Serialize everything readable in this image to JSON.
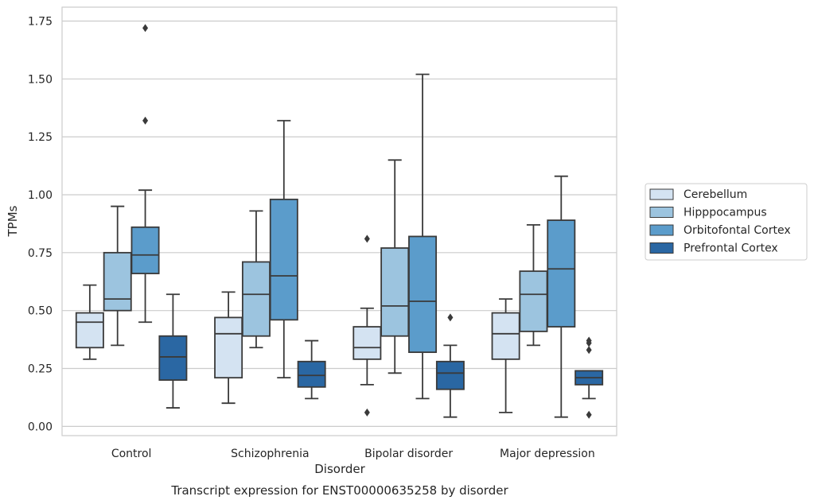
{
  "chart_data": {
    "type": "box",
    "title": "",
    "caption": "Transcript expression for ENST00000635258 by disorder",
    "xlabel": "Disorder",
    "ylabel": "TPMs",
    "ylim": [
      -0.04,
      1.81
    ],
    "yticks": [
      "0.00",
      "0.25",
      "0.50",
      "0.75",
      "1.00",
      "1.25",
      "1.50",
      "1.75"
    ],
    "grid": "horizontal",
    "legend_position": "right",
    "categories": [
      "Control",
      "Schizophrenia",
      "Bipolar disorder",
      "Major depression"
    ],
    "series": [
      {
        "name": "Cerebellum",
        "color": "#d4e3f2",
        "boxes": [
          {
            "whisker_low": 0.29,
            "q1": 0.34,
            "median": 0.45,
            "q3": 0.49,
            "whisker_high": 0.61,
            "outliers": []
          },
          {
            "whisker_low": 0.1,
            "q1": 0.21,
            "median": 0.4,
            "q3": 0.47,
            "whisker_high": 0.58,
            "outliers": []
          },
          {
            "whisker_low": 0.18,
            "q1": 0.29,
            "median": 0.34,
            "q3": 0.43,
            "whisker_high": 0.51,
            "outliers": [
              0.81,
              0.06
            ]
          },
          {
            "whisker_low": 0.06,
            "q1": 0.29,
            "median": 0.4,
            "q3": 0.49,
            "whisker_high": 0.55,
            "outliers": []
          }
        ]
      },
      {
        "name": "Hipppocampus",
        "color": "#9cc4df",
        "boxes": [
          {
            "whisker_low": 0.35,
            "q1": 0.5,
            "median": 0.55,
            "q3": 0.75,
            "whisker_high": 0.95,
            "outliers": []
          },
          {
            "whisker_low": 0.34,
            "q1": 0.39,
            "median": 0.57,
            "q3": 0.71,
            "whisker_high": 0.93,
            "outliers": []
          },
          {
            "whisker_low": 0.23,
            "q1": 0.39,
            "median": 0.52,
            "q3": 0.77,
            "whisker_high": 1.15,
            "outliers": []
          },
          {
            "whisker_low": 0.35,
            "q1": 0.41,
            "median": 0.57,
            "q3": 0.67,
            "whisker_high": 0.87,
            "outliers": []
          }
        ]
      },
      {
        "name": "Orbitofontal Cortex",
        "color": "#5b9ccb",
        "boxes": [
          {
            "whisker_low": 0.45,
            "q1": 0.66,
            "median": 0.74,
            "q3": 0.86,
            "whisker_high": 1.02,
            "outliers": [
              1.72,
              1.32
            ]
          },
          {
            "whisker_low": 0.21,
            "q1": 0.46,
            "median": 0.65,
            "q3": 0.98,
            "whisker_high": 1.32,
            "outliers": []
          },
          {
            "whisker_low": 0.12,
            "q1": 0.32,
            "median": 0.54,
            "q3": 0.82,
            "whisker_high": 1.52,
            "outliers": []
          },
          {
            "whisker_low": 0.04,
            "q1": 0.43,
            "median": 0.68,
            "q3": 0.89,
            "whisker_high": 1.08,
            "outliers": []
          }
        ]
      },
      {
        "name": "Prefrontal Cortex",
        "color": "#2a67a3",
        "boxes": [
          {
            "whisker_low": 0.08,
            "q1": 0.2,
            "median": 0.3,
            "q3": 0.39,
            "whisker_high": 0.57,
            "outliers": []
          },
          {
            "whisker_low": 0.12,
            "q1": 0.17,
            "median": 0.22,
            "q3": 0.28,
            "whisker_high": 0.37,
            "outliers": []
          },
          {
            "whisker_low": 0.04,
            "q1": 0.16,
            "median": 0.23,
            "q3": 0.28,
            "whisker_high": 0.35,
            "outliers": [
              0.47
            ]
          },
          {
            "whisker_low": 0.12,
            "q1": 0.18,
            "median": 0.21,
            "q3": 0.24,
            "whisker_high": 0.24,
            "outliers": [
              0.37,
              0.36,
              0.33,
              0.05
            ]
          }
        ]
      }
    ]
  }
}
